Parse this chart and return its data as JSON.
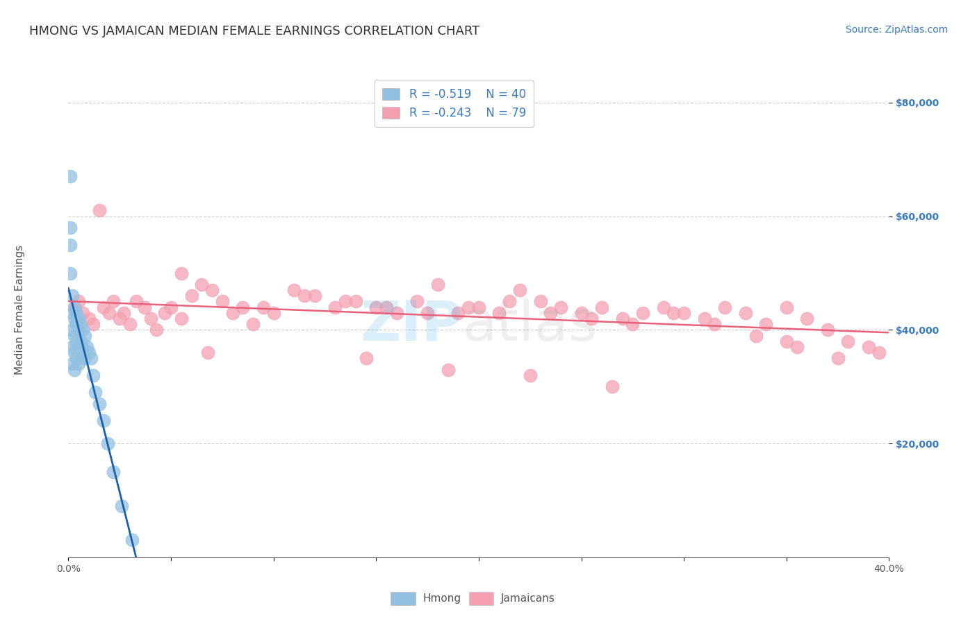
{
  "title": "HMONG VS JAMAICAN MEDIAN FEMALE EARNINGS CORRELATION CHART",
  "source": "Source: ZipAtlas.com",
  "ylabel": "Median Female Earnings",
  "xlim": [
    0.0,
    0.4
  ],
  "ylim": [
    0,
    85000
  ],
  "hmong_color": "#92c0e0",
  "jamaican_color": "#f4a0b0",
  "hmong_line_color": "#1a5fa8",
  "jamaican_line_color": "#e8607a",
  "legend_hmong_R": "-0.519",
  "legend_hmong_N": "40",
  "legend_jamaican_R": "-0.243",
  "legend_jamaican_N": "79",
  "background_color": "#ffffff",
  "hmong_x": [
    0.001,
    0.001,
    0.001,
    0.001,
    0.002,
    0.002,
    0.002,
    0.002,
    0.002,
    0.003,
    0.003,
    0.003,
    0.003,
    0.003,
    0.004,
    0.004,
    0.004,
    0.004,
    0.005,
    0.005,
    0.005,
    0.005,
    0.006,
    0.006,
    0.006,
    0.007,
    0.007,
    0.008,
    0.008,
    0.009,
    0.01,
    0.011,
    0.012,
    0.013,
    0.015,
    0.017,
    0.019,
    0.022,
    0.026,
    0.031
  ],
  "hmong_y": [
    67000,
    58000,
    55000,
    50000,
    46000,
    43000,
    40000,
    37000,
    34000,
    44000,
    42000,
    39000,
    36000,
    33000,
    43000,
    41000,
    38000,
    35000,
    42000,
    40000,
    37000,
    34000,
    41000,
    38000,
    35000,
    40000,
    37000,
    39000,
    35000,
    37000,
    36000,
    35000,
    32000,
    29000,
    27000,
    24000,
    20000,
    15000,
    9000,
    3000
  ],
  "jamaican_x": [
    0.003,
    0.005,
    0.007,
    0.01,
    0.012,
    0.015,
    0.017,
    0.02,
    0.022,
    0.025,
    0.027,
    0.03,
    0.033,
    0.037,
    0.04,
    0.043,
    0.047,
    0.05,
    0.055,
    0.06,
    0.065,
    0.07,
    0.075,
    0.08,
    0.085,
    0.09,
    0.1,
    0.11,
    0.12,
    0.13,
    0.14,
    0.15,
    0.16,
    0.17,
    0.18,
    0.19,
    0.2,
    0.21,
    0.22,
    0.23,
    0.24,
    0.25,
    0.26,
    0.27,
    0.28,
    0.29,
    0.3,
    0.31,
    0.32,
    0.33,
    0.34,
    0.35,
    0.36,
    0.37,
    0.38,
    0.39,
    0.395,
    0.055,
    0.095,
    0.115,
    0.135,
    0.155,
    0.175,
    0.195,
    0.215,
    0.235,
    0.255,
    0.275,
    0.295,
    0.315,
    0.335,
    0.355,
    0.375,
    0.068,
    0.145,
    0.185,
    0.225,
    0.265,
    0.35
  ],
  "jamaican_y": [
    44000,
    45000,
    43000,
    42000,
    41000,
    61000,
    44000,
    43000,
    45000,
    42000,
    43000,
    41000,
    45000,
    44000,
    42000,
    40000,
    43000,
    44000,
    42000,
    46000,
    48000,
    47000,
    45000,
    43000,
    44000,
    41000,
    43000,
    47000,
    46000,
    44000,
    45000,
    44000,
    43000,
    45000,
    48000,
    43000,
    44000,
    43000,
    47000,
    45000,
    44000,
    43000,
    44000,
    42000,
    43000,
    44000,
    43000,
    42000,
    44000,
    43000,
    41000,
    44000,
    42000,
    40000,
    38000,
    37000,
    36000,
    50000,
    44000,
    46000,
    45000,
    44000,
    43000,
    44000,
    45000,
    43000,
    42000,
    41000,
    43000,
    41000,
    39000,
    37000,
    35000,
    36000,
    35000,
    33000,
    32000,
    30000,
    38000
  ],
  "title_fontsize": 13,
  "axis_label_fontsize": 11,
  "tick_fontsize": 10,
  "legend_fontsize": 12,
  "source_fontsize": 10
}
